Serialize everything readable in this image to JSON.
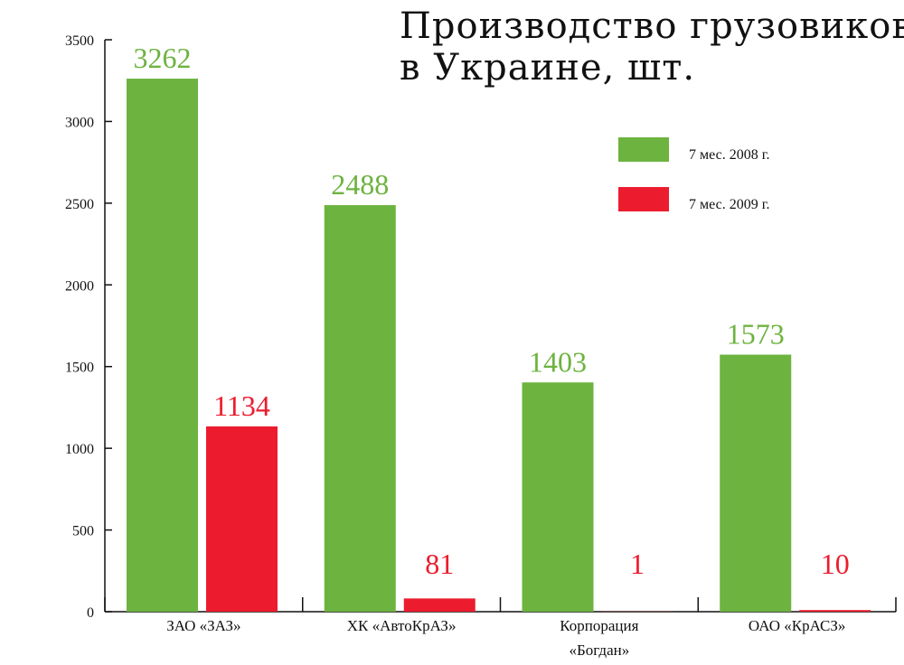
{
  "chart_data": {
    "type": "bar",
    "title_lines": [
      "Производство грузовиков",
      "в Украине, шт."
    ],
    "categories": [
      [
        "ЗАО «ЗАЗ»"
      ],
      [
        "ХК «АвтоКрАЗ»"
      ],
      [
        "Корпорация",
        "«Богдан»"
      ],
      [
        "ОАО «КрАСЗ»"
      ]
    ],
    "series": [
      {
        "name": "7 мес. 2008 г.",
        "color": "#6db33f",
        "values": [
          3262,
          2488,
          1403,
          1573
        ]
      },
      {
        "name": "7 мес. 2009 г.",
        "color": "#ec1c2e",
        "values": [
          1134,
          81,
          1,
          10
        ]
      }
    ],
    "ylim": [
      0,
      3500
    ],
    "yticks": [
      "0",
      "500",
      "1000",
      "1500",
      "2000",
      "2500",
      "3000",
      "3500"
    ],
    "xlabel": "",
    "ylabel": "",
    "grid": false,
    "legend_position": "top-right"
  }
}
